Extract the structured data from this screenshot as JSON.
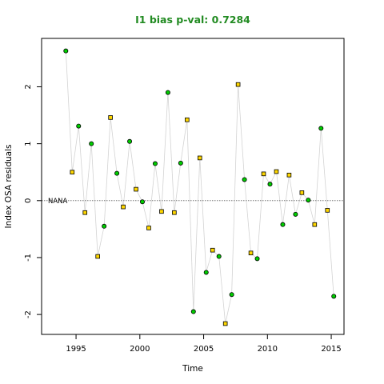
{
  "chart_data": {
    "type": "scatter",
    "title": "I1 bias p-val: 0.7284",
    "title_color": "#228B22",
    "xlabel": "Time",
    "ylabel": "Index OSA residuals",
    "xlim": [
      1992.3,
      2016.0
    ],
    "ylim": [
      -2.35,
      2.85
    ],
    "xticks": [
      1995,
      2000,
      2005,
      2010,
      2015
    ],
    "yticks": [
      -2,
      -1,
      0,
      1,
      2
    ],
    "reference_line": 0,
    "reference_label": "NANA",
    "connecting_line_color": "#d3d3d3",
    "grid": false,
    "series": [
      {
        "marker": "circle",
        "color": "#00cd00",
        "points": [
          [
            1994.2,
            2.63
          ],
          [
            1995.2,
            1.31
          ],
          [
            1996.2,
            1.0
          ],
          [
            1997.2,
            -0.45
          ],
          [
            1998.2,
            0.48
          ],
          [
            1999.2,
            1.04
          ],
          [
            2000.2,
            -0.02
          ],
          [
            2001.2,
            0.65
          ],
          [
            2002.2,
            1.9
          ],
          [
            2003.2,
            0.66
          ],
          [
            2004.2,
            -1.95
          ],
          [
            2005.2,
            -1.26
          ],
          [
            2006.2,
            -0.98
          ],
          [
            2007.2,
            -1.65
          ],
          [
            2008.2,
            0.37
          ],
          [
            2009.2,
            -1.02
          ],
          [
            2010.2,
            0.29
          ],
          [
            2011.2,
            -0.42
          ],
          [
            2012.2,
            -0.24
          ],
          [
            2013.2,
            0.01
          ],
          [
            2014.2,
            1.27
          ],
          [
            2015.2,
            -1.68
          ]
        ]
      },
      {
        "marker": "square",
        "color": "#ffd700",
        "points": [
          [
            1994.7,
            0.5
          ],
          [
            1995.7,
            -0.21
          ],
          [
            1996.7,
            -0.98
          ],
          [
            1997.7,
            1.46
          ],
          [
            1998.7,
            -0.11
          ],
          [
            1999.7,
            0.2
          ],
          [
            2000.7,
            -0.48
          ],
          [
            2001.7,
            -0.19
          ],
          [
            2002.7,
            -0.21
          ],
          [
            2003.7,
            1.42
          ],
          [
            2004.7,
            0.75
          ],
          [
            2005.7,
            -0.87
          ],
          [
            2006.7,
            -2.16
          ],
          [
            2007.7,
            2.04
          ],
          [
            2008.7,
            -0.92
          ],
          [
            2009.7,
            0.47
          ],
          [
            2010.7,
            0.51
          ],
          [
            2011.7,
            0.45
          ],
          [
            2012.7,
            0.14
          ],
          [
            2013.7,
            -0.42
          ],
          [
            2014.7,
            -0.17
          ]
        ]
      }
    ]
  }
}
